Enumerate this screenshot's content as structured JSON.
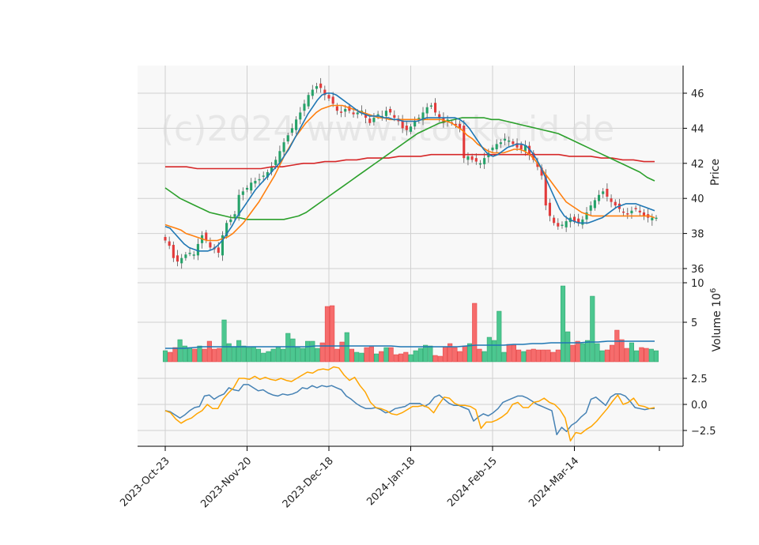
{
  "watermark": "(c)2024 www.stockgrid.de",
  "colors": {
    "up": "#26a269",
    "down": "#e23b3b",
    "up_bar": "#4cc790",
    "down_bar": "#f66c6c",
    "ma_short": "#1f77b4",
    "ma_mid": "#ff7f0e",
    "ma_long": "#2ca02c",
    "ma_200": "#d62728",
    "osc_a": "#4682b4",
    "osc_b": "#ffa500",
    "panel_bg": "#f8f8f8",
    "grid": "#d0d0d0"
  },
  "chart_data": [
    {
      "type": "candlestick",
      "panel": "price",
      "ylabel": "Price",
      "ylim": [
        35.7,
        47.5
      ],
      "yticks": [
        "36",
        "38",
        "40",
        "42",
        "44",
        "46"
      ],
      "x_dates": [
        "2023-Oct-23",
        "2023-Nov-20",
        "2023-Dec-18",
        "2024-Jan-18",
        "2024-Feb-15",
        "2024-Mar-14"
      ],
      "date_tick_positions": [
        0,
        20,
        40,
        60,
        80,
        100
      ],
      "candles_close": [
        37.6,
        37.3,
        36.6,
        36.4,
        36.6,
        36.8,
        36.9,
        36.8,
        37.4,
        37.9,
        37.6,
        37.2,
        37.1,
        36.9,
        37.9,
        38.6,
        38.8,
        39.1,
        40.2,
        40.4,
        40.6,
        40.9,
        41.0,
        41.1,
        41.3,
        41.5,
        41.8,
        42.2,
        42.7,
        43.2,
        43.6,
        44.0,
        44.5,
        44.9,
        45.4,
        45.9,
        46.2,
        46.4,
        46.3,
        45.9,
        45.7,
        45.4,
        45.0,
        44.9,
        45.1,
        45.0,
        44.8,
        44.9,
        45.0,
        44.6,
        44.3,
        44.6,
        44.8,
        44.7,
        45.0,
        44.9,
        44.6,
        44.4,
        44.0,
        43.9,
        44.1,
        44.4,
        44.6,
        44.9,
        45.2,
        45.3,
        44.9,
        44.6,
        44.3,
        44.5,
        44.3,
        44.2,
        44.0,
        42.3,
        42.4,
        42.2,
        42.1,
        42.0,
        42.3,
        42.6,
        42.9,
        43.1,
        43.2,
        43.4,
        43.3,
        43.1,
        42.9,
        42.8,
        43.0,
        42.5,
        42.2,
        41.8,
        41.3,
        39.6,
        39.0,
        38.6,
        38.4,
        38.5,
        38.7,
        38.9,
        38.7,
        38.6,
        38.8,
        39.2,
        39.6,
        39.9,
        40.2,
        40.4,
        40.1,
        39.8,
        39.6,
        39.4,
        39.2,
        39.1,
        39.3,
        39.4,
        39.2,
        39.0,
        38.9,
        38.9,
        38.9
      ],
      "ma_short": [
        38.4,
        38.3,
        38.0,
        37.7,
        37.4,
        37.2,
        37.1,
        37.0,
        37.0,
        37.0,
        37.1,
        37.3,
        37.6,
        38.0,
        38.4,
        38.9,
        39.3,
        39.7,
        40.1,
        40.5,
        40.8,
        41.1,
        41.4,
        41.7,
        42.0,
        42.4,
        42.8,
        43.3,
        43.8,
        44.3,
        44.8,
        45.2,
        45.6,
        45.9,
        46.0,
        46.0,
        45.9,
        45.7,
        45.5,
        45.3,
        45.1,
        44.9,
        44.8,
        44.7,
        44.7,
        44.7,
        44.6,
        44.6,
        44.5,
        44.5,
        44.4,
        44.4,
        44.4,
        44.4,
        44.5,
        44.6,
        44.6,
        44.6,
        44.6,
        44.6,
        44.6,
        44.6,
        44.5,
        44.3,
        44.0,
        43.6,
        43.2,
        42.8,
        42.5,
        42.4,
        42.5,
        42.7,
        42.9,
        43.0,
        43.1,
        43.1,
        43.0,
        42.7,
        42.3,
        41.8,
        41.2,
        40.6,
        40.0,
        39.4,
        39.0,
        38.8,
        38.7,
        38.6,
        38.6,
        38.6,
        38.7,
        38.8,
        38.9,
        39.1,
        39.3,
        39.5,
        39.6,
        39.7,
        39.7,
        39.7,
        39.6,
        39.5,
        39.4,
        39.3
      ],
      "ma_mid": [
        38.5,
        38.4,
        38.3,
        38.2,
        38.0,
        37.9,
        37.8,
        37.7,
        37.6,
        37.6,
        37.6,
        37.7,
        37.8,
        38.0,
        38.3,
        38.6,
        39.0,
        39.4,
        39.8,
        40.3,
        40.8,
        41.3,
        41.9,
        42.5,
        43.0,
        43.5,
        43.9,
        44.3,
        44.6,
        44.9,
        45.1,
        45.2,
        45.3,
        45.3,
        45.3,
        45.2,
        45.1,
        45.0,
        44.9,
        44.8,
        44.7,
        44.6,
        44.6,
        44.5,
        44.5,
        44.5,
        44.5,
        44.5,
        44.5,
        44.5,
        44.5,
        44.5,
        44.5,
        44.5,
        44.4,
        44.3,
        44.1,
        43.9,
        43.6,
        43.4,
        43.1,
        42.9,
        42.7,
        42.6,
        42.6,
        42.6,
        42.7,
        42.8,
        42.8,
        42.7,
        42.5,
        42.2,
        41.8,
        41.4,
        41.0,
        40.6,
        40.2,
        39.8,
        39.6,
        39.4,
        39.2,
        39.1,
        39.0,
        39.0,
        39.0,
        39.0,
        39.0,
        39.0,
        39.0,
        39.0,
        39.0,
        39.0,
        39.0,
        39.0,
        38.9
      ],
      "ma_long": [
        40.6,
        40.3,
        40.0,
        39.8,
        39.6,
        39.4,
        39.2,
        39.1,
        39.0,
        38.9,
        38.9,
        38.8,
        38.8,
        38.8,
        38.8,
        38.8,
        38.8,
        38.9,
        39.0,
        39.2,
        39.5,
        39.8,
        40.1,
        40.4,
        40.7,
        41.0,
        41.3,
        41.6,
        41.9,
        42.2,
        42.5,
        42.8,
        43.1,
        43.4,
        43.7,
        43.9,
        44.1,
        44.3,
        44.4,
        44.5,
        44.6,
        44.6,
        44.6,
        44.6,
        44.5,
        44.5,
        44.4,
        44.3,
        44.2,
        44.1,
        44.0,
        43.9,
        43.8,
        43.7,
        43.5,
        43.3,
        43.1,
        42.9,
        42.7,
        42.5,
        42.3,
        42.1,
        41.9,
        41.7,
        41.5,
        41.2,
        41.0
      ],
      "ma_200": [
        41.8,
        41.8,
        41.8,
        41.7,
        41.7,
        41.7,
        41.7,
        41.7,
        41.7,
        41.7,
        41.8,
        41.8,
        41.9,
        42.0,
        42.0,
        42.1,
        42.1,
        42.2,
        42.2,
        42.3,
        42.3,
        42.3,
        42.4,
        42.4,
        42.4,
        42.5,
        42.5,
        42.5,
        42.5,
        42.5,
        42.5,
        42.5,
        42.5,
        42.5,
        42.5,
        42.5,
        42.5,
        42.5,
        42.4,
        42.4,
        42.4,
        42.3,
        42.3,
        42.2,
        42.2,
        42.1,
        42.1
      ]
    },
    {
      "type": "bar",
      "panel": "volume",
      "ylabel": "Volume  10^6",
      "ylim": [
        0,
        10
      ],
      "yticks": [
        "5",
        "10"
      ],
      "values": [
        1.4,
        1.2,
        1.8,
        2.8,
        2.0,
        1.8,
        1.6,
        2.0,
        1.6,
        2.6,
        1.6,
        1.7,
        5.3,
        2.3,
        1.9,
        2.7,
        2.0,
        1.8,
        1.9,
        1.6,
        1.1,
        1.3,
        1.6,
        1.9,
        1.6,
        3.6,
        2.9,
        1.8,
        1.7,
        2.6,
        2.6,
        1.7,
        2.4,
        7.0,
        7.1,
        1.6,
        2.5,
        3.7,
        1.6,
        1.2,
        1.1,
        1.8,
        1.9,
        1.0,
        1.3,
        1.8,
        1.8,
        0.9,
        1.0,
        1.2,
        0.9,
        1.4,
        1.7,
        2.1,
        2.0,
        0.8,
        0.7,
        1.9,
        2.3,
        1.8,
        1.3,
        2.0,
        2.3,
        7.4,
        1.6,
        1.3,
        3.1,
        2.7,
        6.4,
        1.2,
        2.2,
        2.1,
        1.5,
        1.3,
        1.5,
        1.6,
        1.5,
        1.5,
        1.5,
        1.2,
        1.5,
        9.6,
        3.8,
        2.1,
        2.6,
        2.3,
        2.7,
        8.3,
        2.3,
        1.4,
        1.5,
        2.1,
        4.0,
        2.8,
        1.7,
        2.4,
        1.4,
        1.8,
        1.7,
        1.6,
        1.4
      ],
      "volume_ma": [
        1.7,
        1.7,
        1.7,
        1.8,
        1.9,
        1.9,
        1.9,
        1.9,
        1.9,
        1.9,
        1.9,
        1.9,
        1.9,
        1.9,
        1.9,
        1.9,
        2.0,
        2.0,
        2.0,
        2.0,
        2.0,
        2.0,
        2.0,
        2.0,
        2.0,
        1.9,
        1.9,
        1.9,
        1.9,
        1.9,
        1.9,
        1.9,
        2.0,
        2.1,
        2.1,
        2.1,
        2.1,
        2.2,
        2.2,
        2.3,
        2.3,
        2.4,
        2.4,
        2.4,
        2.4,
        2.5,
        2.5,
        2.6,
        2.6,
        2.6,
        2.6,
        2.6,
        2.6
      ]
    },
    {
      "type": "line",
      "panel": "oscillator",
      "ylim": [
        -4.0,
        3.7
      ],
      "yticks": [
        "-2.5",
        "0.0",
        "2.5"
      ],
      "series": [
        {
          "values": [
            -0.6,
            -0.7,
            -1.0,
            -1.3,
            -1.0,
            -0.6,
            -0.3,
            -0.2,
            0.8,
            0.9,
            0.5,
            0.8,
            1.0,
            1.6,
            1.4,
            1.3,
            1.9,
            1.9,
            1.6,
            1.3,
            1.4,
            1.1,
            0.9,
            0.8,
            1.0,
            0.9,
            1.0,
            1.2,
            1.6,
            1.5,
            1.8,
            1.6,
            1.8,
            1.7,
            1.8,
            1.6,
            1.4,
            0.8,
            0.5,
            0.1,
            -0.2,
            -0.4,
            -0.4,
            -0.3,
            -0.5,
            -0.8,
            -0.7,
            -0.4,
            -0.3,
            -0.2,
            0.1,
            0.1,
            0.1,
            -0.2,
            0.1,
            0.7,
            0.9,
            0.5,
            0.1,
            -0.1,
            -0.1,
            -0.3,
            -0.5,
            -1.6,
            -1.2,
            -0.9,
            -1.1,
            -0.8,
            -0.4,
            0.2,
            0.4,
            0.6,
            0.8,
            0.8,
            0.6,
            0.3,
            0.0,
            -0.2,
            -0.4,
            -0.6,
            -2.9,
            -2.2,
            -2.6,
            -2.0,
            -1.7,
            -1.2,
            -0.8,
            0.5,
            0.7,
            0.3,
            -0.1,
            0.7,
            1.0,
            1.0,
            0.8,
            0.3,
            -0.3,
            -0.4,
            -0.5,
            -0.4,
            -0.4
          ]
        },
        {
          "values": [
            -0.6,
            -0.8,
            -1.4,
            -1.8,
            -1.5,
            -1.3,
            -0.9,
            -0.6,
            0.0,
            -0.4,
            -0.4,
            0.5,
            1.1,
            1.6,
            2.5,
            2.5,
            2.4,
            2.7,
            2.4,
            2.6,
            2.4,
            2.3,
            2.5,
            2.3,
            2.2,
            2.5,
            2.8,
            3.1,
            3.0,
            3.3,
            3.4,
            3.3,
            3.6,
            3.5,
            2.8,
            2.3,
            2.6,
            1.8,
            1.2,
            0.2,
            -0.3,
            -0.4,
            -0.6,
            -0.9,
            -1.0,
            -0.8,
            -0.5,
            -0.2,
            -0.2,
            -0.1,
            -0.3,
            -0.8,
            0.0,
            0.7,
            0.6,
            0.1,
            -0.1,
            -0.1,
            -0.2,
            -0.5,
            -2.3,
            -1.7,
            -1.7,
            -1.5,
            -1.2,
            -0.8,
            0.0,
            0.2,
            -0.3,
            -0.3,
            0.2,
            0.3,
            0.6,
            0.2,
            0.0,
            -0.5,
            -1.3,
            -3.5,
            -2.7,
            -2.8,
            -2.4,
            -2.1,
            -1.6,
            -1.0,
            -0.4,
            0.3,
            0.9,
            0.0,
            0.2,
            0.6,
            -0.1,
            -0.2,
            -0.4,
            -0.3
          ]
        }
      ]
    }
  ]
}
